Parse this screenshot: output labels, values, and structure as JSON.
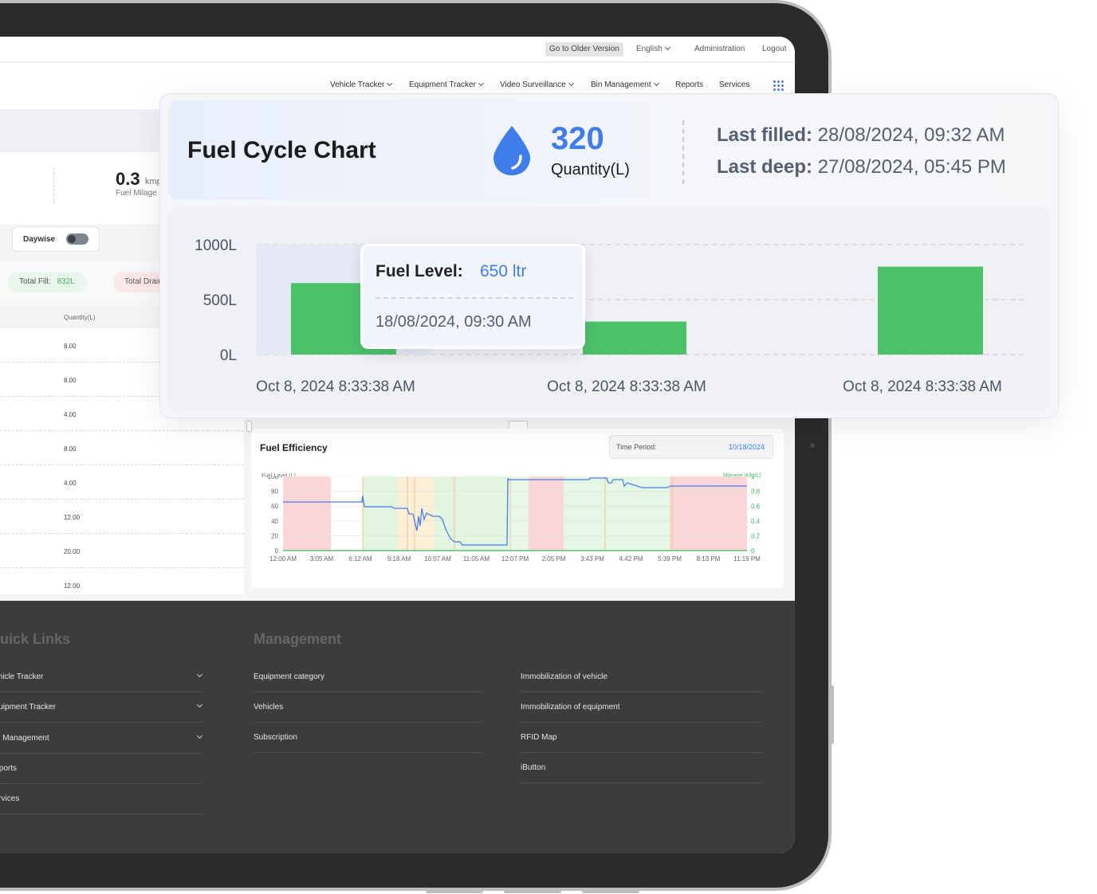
{
  "topbar": {
    "older_version": "Go to Older Version",
    "language": "English",
    "administration": "Administration",
    "logout": "Logout"
  },
  "nav": {
    "items": [
      "Vehicle Tracker",
      "Equipment Tracker",
      "Video Surveillance",
      "Bin Management",
      "Reports",
      "Services"
    ]
  },
  "left_panel": {
    "mileage_value": "0.3",
    "mileage_unit": "kmp",
    "mileage_label": "Fuel Milage",
    "daywise_label": "Daywise",
    "total_fill_label": "Total Fill:",
    "total_fill_value": "832L",
    "total_drain_label": "Total Drain",
    "table_header": "Quantity(L)",
    "rows": [
      "8.00",
      "8.00",
      "4.00",
      "8.00",
      "4.00",
      "12.00",
      "20.00",
      "12.00"
    ]
  },
  "fuel_efficiency": {
    "title": "Fuel Efficiency",
    "time_period_label": "Time Period:",
    "time_period_value": "10/18/2024",
    "y_label": "Fuel Level (L)",
    "y2_label": "Mileage (KM/L)",
    "y_ticks": [
      "100",
      "80",
      "60",
      "40",
      "20",
      "0"
    ],
    "y2_ticks": [
      "1",
      "0.8",
      "0.6",
      "0.4",
      "0.2",
      "0"
    ],
    "x_ticks": [
      "12:00 AM",
      "3:05 AM",
      "6:12 AM",
      "9:18 AM",
      "10:07 AM",
      "11:05 AM",
      "12:07 PM",
      "2:05 PM",
      "3:43 PM",
      "4:42 PM",
      "5:39 PM",
      "8:13 PM",
      "11:19 PM"
    ]
  },
  "footer": {
    "quick_links_title": "Quick Links",
    "quick_links": [
      "Vehicle Tracker",
      "Equipment Tracker",
      "Bin Management",
      "Reports",
      "Services"
    ],
    "management_title": "Management",
    "management_col1": [
      "Equipment category",
      "Vehicles",
      "Subscription"
    ],
    "management_col2": [
      "Immobilization of vehicle",
      "Immobilization of equipment",
      "RFID Map",
      "iButton"
    ]
  },
  "fuel_cycle": {
    "title": "Fuel Cycle Chart",
    "quantity_value": "320",
    "quantity_label": "Quantity(L)",
    "last_filled_label": "Last filled:",
    "last_filled_value": "28/08/2024, 09:32 AM",
    "last_deep_label": "Last deep:",
    "last_deep_value": "27/08/2024, 05:45 PM",
    "tooltip_label": "Fuel Level:",
    "tooltip_value": "650  ltr",
    "tooltip_date": "18/08/2024, 09:30 AM",
    "bar_color": "#4cc26a",
    "accent_color": "#3f7ee8"
  },
  "chart_data": {
    "type": "bar",
    "title": "Fuel Cycle Chart",
    "categories": [
      "Oct 8, 2024 8:33:38 AM",
      "Oct 8, 2024 8:33:38 AM",
      "Oct 8, 2024 8:33:38 AM"
    ],
    "values": [
      650,
      300,
      800
    ],
    "y_ticks": [
      "1000L",
      "500L",
      "0L"
    ],
    "ylim": [
      0,
      1000
    ],
    "grid": true
  }
}
